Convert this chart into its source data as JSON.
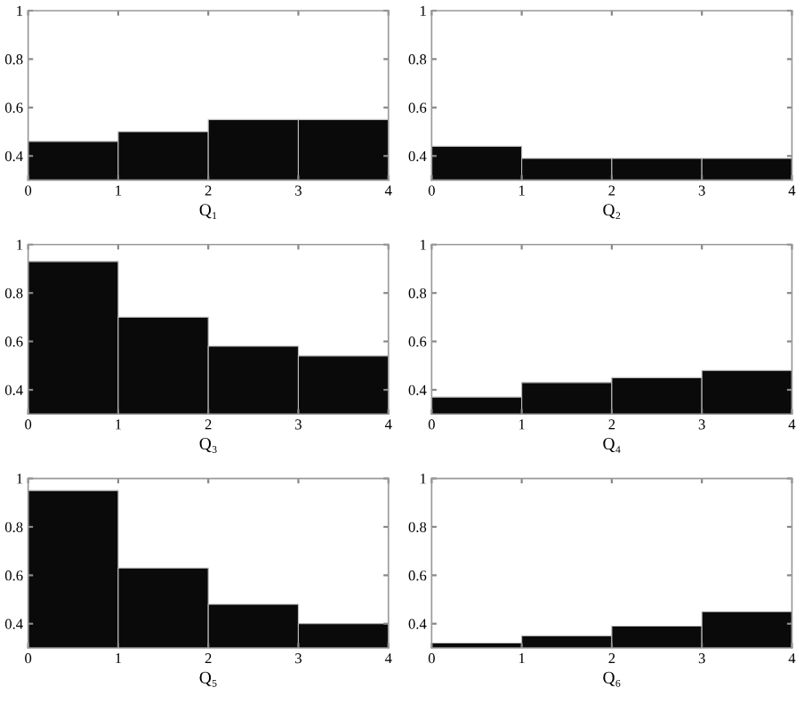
{
  "chart_data": [
    {
      "type": "histogram",
      "xlabel": "Q₁",
      "bins": [
        0,
        1,
        2,
        3,
        4
      ],
      "values": [
        0.46,
        0.5,
        0.55,
        0.55
      ],
      "color": "#0a0a0a",
      "xlim": [
        0,
        4
      ],
      "ylim": [
        0.3,
        1
      ],
      "xticks": [
        0,
        1,
        2,
        3,
        4
      ],
      "yticks": [
        0.4,
        0.6,
        0.8,
        1
      ]
    },
    {
      "type": "histogram",
      "xlabel": "Q₂",
      "bins": [
        0,
        1,
        2,
        3,
        4
      ],
      "values": [
        0.44,
        0.39,
        0.39,
        0.39
      ],
      "color": "#0a0a0a",
      "xlim": [
        0,
        4
      ],
      "ylim": [
        0.3,
        1
      ],
      "xticks": [
        0,
        1,
        2,
        3,
        4
      ],
      "yticks": [
        0.4,
        0.6,
        0.8,
        1
      ]
    },
    {
      "type": "histogram",
      "xlabel": "Q₃",
      "bins": [
        0,
        1,
        2,
        3,
        4
      ],
      "values": [
        0.93,
        0.7,
        0.58,
        0.54
      ],
      "color": "#0a0a0a",
      "xlim": [
        0,
        4
      ],
      "ylim": [
        0.3,
        1
      ],
      "xticks": [
        0,
        1,
        2,
        3,
        4
      ],
      "yticks": [
        0.4,
        0.6,
        0.8,
        1
      ]
    },
    {
      "type": "histogram",
      "xlabel": "Q₄",
      "bins": [
        0,
        1,
        2,
        3,
        4
      ],
      "values": [
        0.37,
        0.43,
        0.45,
        0.48
      ],
      "color": "#0a0a0a",
      "xlim": [
        0,
        4
      ],
      "ylim": [
        0.3,
        1
      ],
      "xticks": [
        0,
        1,
        2,
        3,
        4
      ],
      "yticks": [
        0.4,
        0.6,
        0.8,
        1
      ]
    },
    {
      "type": "histogram",
      "xlabel": "Q₅",
      "bins": [
        0,
        1,
        2,
        3,
        4
      ],
      "values": [
        0.95,
        0.63,
        0.48,
        0.4
      ],
      "color": "#0a0a0a",
      "xlim": [
        0,
        4
      ],
      "ylim": [
        0.3,
        1
      ],
      "xticks": [
        0,
        1,
        2,
        3,
        4
      ],
      "yticks": [
        0.4,
        0.6,
        0.8,
        1
      ]
    },
    {
      "type": "histogram",
      "xlabel": "Q₆",
      "bins": [
        0,
        1,
        2,
        3,
        4
      ],
      "values": [
        0.32,
        0.35,
        0.39,
        0.45
      ],
      "color": "#0a0a0a",
      "xlim": [
        0,
        4
      ],
      "ylim": [
        0.3,
        1
      ],
      "xticks": [
        0,
        1,
        2,
        3,
        4
      ],
      "yticks": [
        0.4,
        0.6,
        0.8,
        1
      ]
    }
  ]
}
